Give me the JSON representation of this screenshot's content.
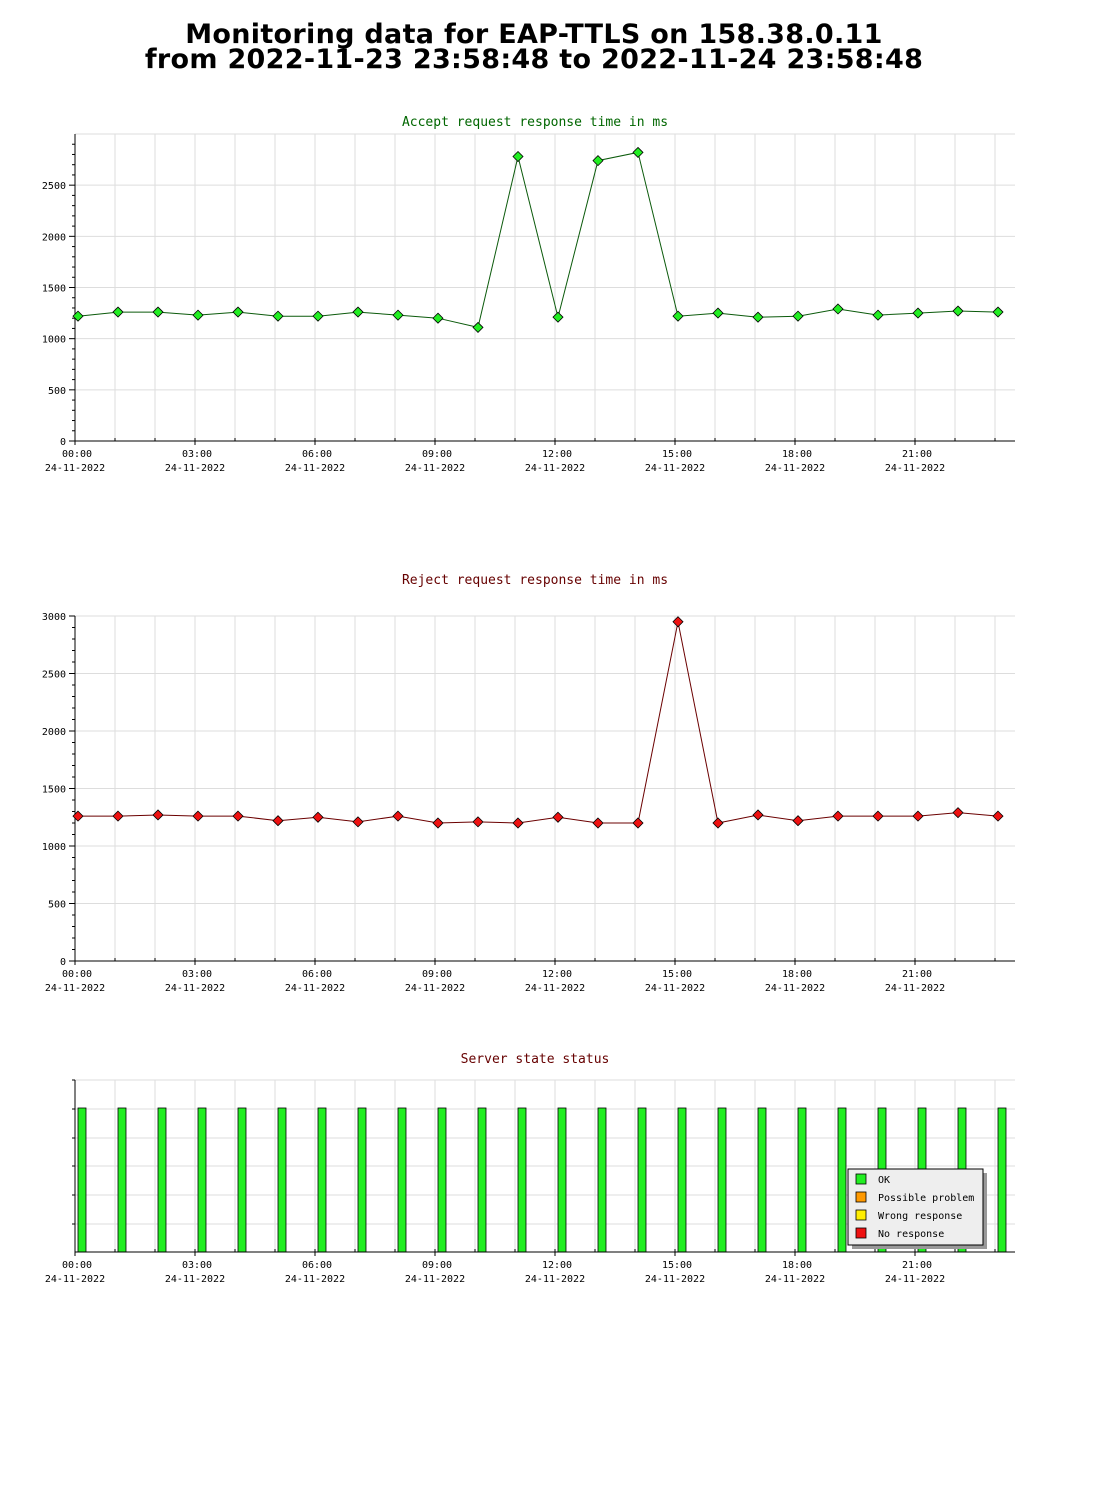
{
  "page": {
    "title_line1": "Monitoring data for EAP-TTLS on 158.38.0.11",
    "title_line2": "from 2022-11-23 23:58:48 to 2022-11-24 23:58:48"
  },
  "colors": {
    "accept_line": "#0b5a0b",
    "accept_marker": "#22ee22",
    "reject_line": "#6b0000",
    "reject_marker": "#ee1111",
    "status_ok": "#22ee22",
    "status_possible_problem": "#ff9900",
    "status_wrong_response": "#ffee00",
    "status_no_response": "#ee1111",
    "title_accept": "#006600",
    "title_reject": "#660000",
    "grid": "#dddddd"
  },
  "chart_data": [
    {
      "type": "line",
      "title": "Accept request response time in ms",
      "xlabel": "",
      "ylabel": "",
      "x_ticks": [
        {
          "time": "00:00",
          "date": "24-11-2022"
        },
        {
          "time": "03:00",
          "date": "24-11-2022"
        },
        {
          "time": "06:00",
          "date": "24-11-2022"
        },
        {
          "time": "09:00",
          "date": "24-11-2022"
        },
        {
          "time": "12:00",
          "date": "24-11-2022"
        },
        {
          "time": "15:00",
          "date": "24-11-2022"
        },
        {
          "time": "18:00",
          "date": "24-11-2022"
        },
        {
          "time": "21:00",
          "date": "24-11-2022"
        }
      ],
      "y_ticks": [
        "0",
        "500",
        "1000",
        "1500",
        "2000",
        "2500"
      ],
      "ylim": [
        0,
        3000
      ],
      "grid": true,
      "x": [
        "00:00",
        "01:00",
        "02:00",
        "03:00",
        "04:00",
        "05:00",
        "06:00",
        "07:00",
        "08:00",
        "09:00",
        "10:00",
        "11:00",
        "12:00",
        "13:00",
        "14:00",
        "15:00",
        "16:00",
        "17:00",
        "18:00",
        "19:00",
        "20:00",
        "21:00",
        "22:00",
        "23:00"
      ],
      "values": [
        1220,
        1260,
        1260,
        1230,
        1260,
        1220,
        1220,
        1260,
        1230,
        1200,
        1110,
        2780,
        1210,
        2740,
        2820,
        1220,
        1250,
        1210,
        1220,
        1290,
        1230,
        1250,
        1270,
        1260
      ]
    },
    {
      "type": "line",
      "title": "Reject request response time in ms",
      "xlabel": "",
      "ylabel": "",
      "x_ticks": [
        {
          "time": "00:00",
          "date": "24-11-2022"
        },
        {
          "time": "03:00",
          "date": "24-11-2022"
        },
        {
          "time": "06:00",
          "date": "24-11-2022"
        },
        {
          "time": "09:00",
          "date": "24-11-2022"
        },
        {
          "time": "12:00",
          "date": "24-11-2022"
        },
        {
          "time": "15:00",
          "date": "24-11-2022"
        },
        {
          "time": "18:00",
          "date": "24-11-2022"
        },
        {
          "time": "21:00",
          "date": "24-11-2022"
        }
      ],
      "y_ticks": [
        "0",
        "500",
        "1000",
        "1500",
        "2000",
        "2500",
        "3000"
      ],
      "ylim": [
        0,
        3000
      ],
      "grid": true,
      "x": [
        "00:00",
        "01:00",
        "02:00",
        "03:00",
        "04:00",
        "05:00",
        "06:00",
        "07:00",
        "08:00",
        "09:00",
        "10:00",
        "11:00",
        "12:00",
        "13:00",
        "14:00",
        "15:00",
        "16:00",
        "17:00",
        "18:00",
        "19:00",
        "20:00",
        "21:00",
        "22:00",
        "23:00"
      ],
      "values": [
        1260,
        1260,
        1270,
        1260,
        1260,
        1220,
        1250,
        1210,
        1260,
        1200,
        1210,
        1200,
        1250,
        1200,
        1200,
        2950,
        1200,
        1270,
        1220,
        1260,
        1260,
        1260,
        1290,
        1260
      ]
    },
    {
      "type": "bar",
      "title": "Server state status",
      "xlabel": "",
      "ylabel": "",
      "x_ticks": [
        {
          "time": "00:00",
          "date": "24-11-2022"
        },
        {
          "time": "03:00",
          "date": "24-11-2022"
        },
        {
          "time": "06:00",
          "date": "24-11-2022"
        },
        {
          "time": "09:00",
          "date": "24-11-2022"
        },
        {
          "time": "12:00",
          "date": "24-11-2022"
        },
        {
          "time": "15:00",
          "date": "24-11-2022"
        },
        {
          "time": "18:00",
          "date": "24-11-2022"
        },
        {
          "time": "21:00",
          "date": "24-11-2022"
        }
      ],
      "grid": true,
      "legend_position": "bottom-right",
      "legend": [
        {
          "label": "OK",
          "color_key": "status_ok"
        },
        {
          "label": "Possible problem",
          "color_key": "status_possible_problem"
        },
        {
          "label": "Wrong response",
          "color_key": "status_wrong_response"
        },
        {
          "label": "No response",
          "color_key": "status_no_response"
        }
      ],
      "x": [
        "00:00",
        "01:00",
        "02:00",
        "03:00",
        "04:00",
        "05:00",
        "06:00",
        "07:00",
        "08:00",
        "09:00",
        "10:00",
        "11:00",
        "12:00",
        "13:00",
        "14:00",
        "15:00",
        "16:00",
        "17:00",
        "18:00",
        "19:00",
        "20:00",
        "21:00",
        "22:00",
        "23:00"
      ],
      "states": [
        "OK",
        "OK",
        "OK",
        "OK",
        "OK",
        "OK",
        "OK",
        "OK",
        "OK",
        "OK",
        "OK",
        "OK",
        "OK",
        "OK",
        "OK",
        "OK",
        "OK",
        "OK",
        "OK",
        "OK",
        "OK",
        "OK",
        "OK",
        "OK"
      ]
    }
  ]
}
